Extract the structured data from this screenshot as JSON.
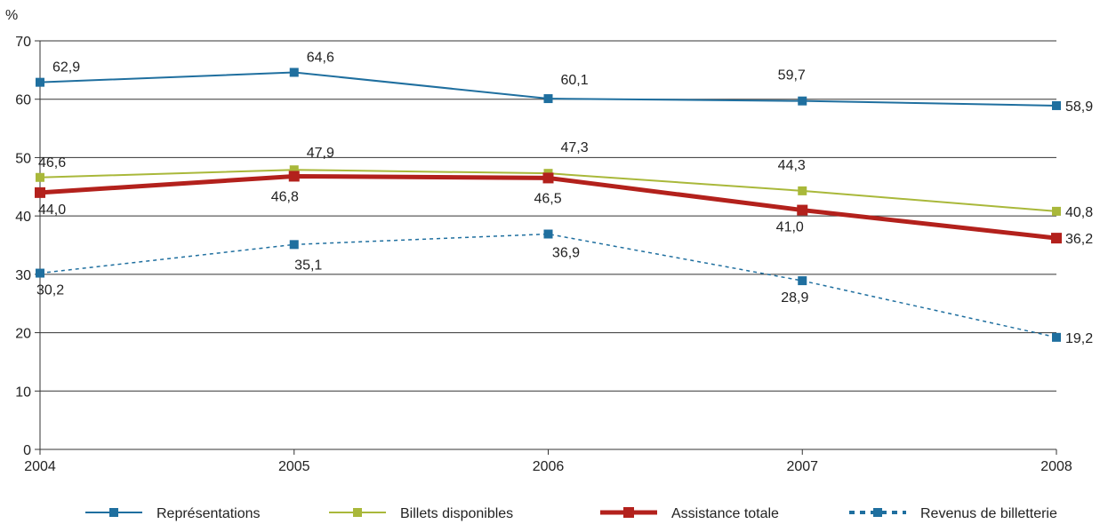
{
  "chart_data": {
    "type": "line",
    "ylabel": "%",
    "ylim": [
      0,
      70
    ],
    "yticks": [
      0,
      10,
      20,
      30,
      40,
      50,
      60,
      70
    ],
    "x": [
      "2004",
      "2005",
      "2006",
      "2007",
      "2008"
    ],
    "grid": true,
    "legend_position": "bottom",
    "series": [
      {
        "name": "Représentations",
        "values": [
          62.9,
          64.6,
          60.1,
          59.7,
          58.9
        ],
        "labels": [
          "62,9",
          "64,6",
          "60,1",
          "59,7",
          "58,9"
        ],
        "color": "#1f6f9f",
        "line_style": "solid",
        "line_width": "thin"
      },
      {
        "name": "Billets disponibles",
        "values": [
          46.6,
          47.9,
          47.3,
          44.3,
          40.8
        ],
        "labels": [
          "46,6",
          "47,9",
          "47,3",
          "44,3",
          "40,8"
        ],
        "color": "#a9b83a",
        "line_style": "solid",
        "line_width": "thin"
      },
      {
        "name": "Assistance totale",
        "values": [
          44.0,
          46.8,
          46.5,
          41.0,
          36.2
        ],
        "labels": [
          "44,0",
          "46,8",
          "46,5",
          "41,0",
          "36,2"
        ],
        "color": "#b3211c",
        "line_style": "solid",
        "line_width": "thick"
      },
      {
        "name": "Revenus de billetterie",
        "values": [
          30.2,
          35.1,
          36.9,
          28.9,
          19.2
        ],
        "labels": [
          "30,2",
          "35,1",
          "36,9",
          "28,9",
          "19,2"
        ],
        "color": "#1f6f9f",
        "line_style": "dotted",
        "line_width": "thin"
      }
    ]
  }
}
